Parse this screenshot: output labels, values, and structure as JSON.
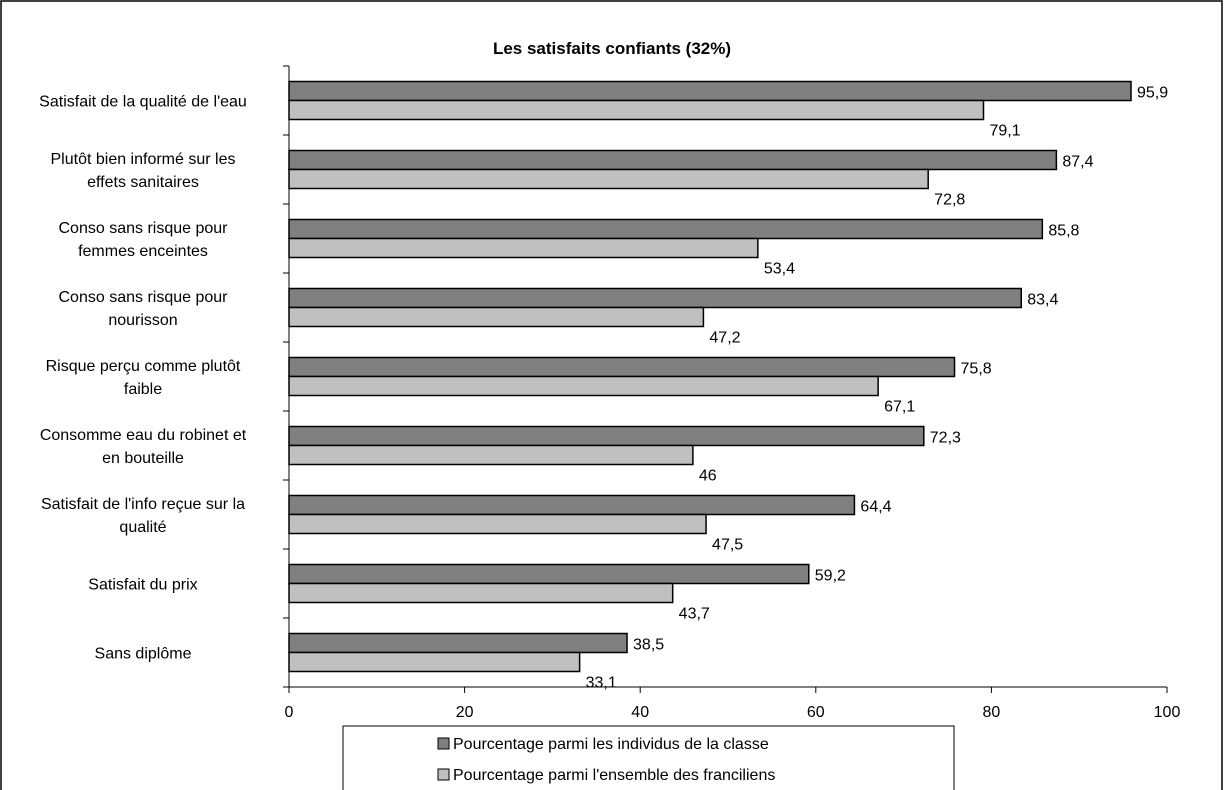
{
  "chart_data": {
    "type": "bar",
    "orientation": "horizontal",
    "title": "Les satisfaits confiants (32%)",
    "categories": [
      [
        "Satisfait de la qualité de l'eau"
      ],
      [
        "Plutôt bien informé sur les",
        "effets sanitaires"
      ],
      [
        "Conso sans risque pour",
        "femmes enceintes"
      ],
      [
        "Conso sans risque pour",
        "nourisson"
      ],
      [
        "Risque perçu comme plutôt",
        "faible"
      ],
      [
        "Consomme eau du robinet et",
        "en bouteille"
      ],
      [
        "Satisfait de l'info reçue sur la",
        "qualité"
      ],
      [
        "Satisfait du prix"
      ],
      [
        "Sans diplôme"
      ]
    ],
    "series": [
      {
        "name": "Pourcentage parmi les individus de la classe",
        "color": "#808080",
        "values": [
          95.9,
          87.4,
          85.8,
          83.4,
          75.8,
          72.3,
          64.4,
          59.2,
          38.5
        ],
        "labels": [
          "95,9",
          "87,4",
          "85,8",
          "83,4",
          "75,8",
          "72,3",
          "64,4",
          "59,2",
          "38,5"
        ]
      },
      {
        "name": "Pourcentage parmi l'ensemble des franciliens",
        "color": "#c0c0c0",
        "values": [
          79.1,
          72.8,
          53.4,
          47.2,
          67.1,
          46,
          47.5,
          43.7,
          33.1
        ],
        "labels": [
          "79,1",
          "72,8",
          "53,4",
          "47,2",
          "67,1",
          "46",
          "47,5",
          "43,7",
          "33,1"
        ]
      }
    ],
    "xlim": [
      0,
      100
    ],
    "xticks": [
      "0",
      "20",
      "40",
      "60",
      "80",
      "100"
    ],
    "grid": false,
    "legend_position": "bottom"
  }
}
